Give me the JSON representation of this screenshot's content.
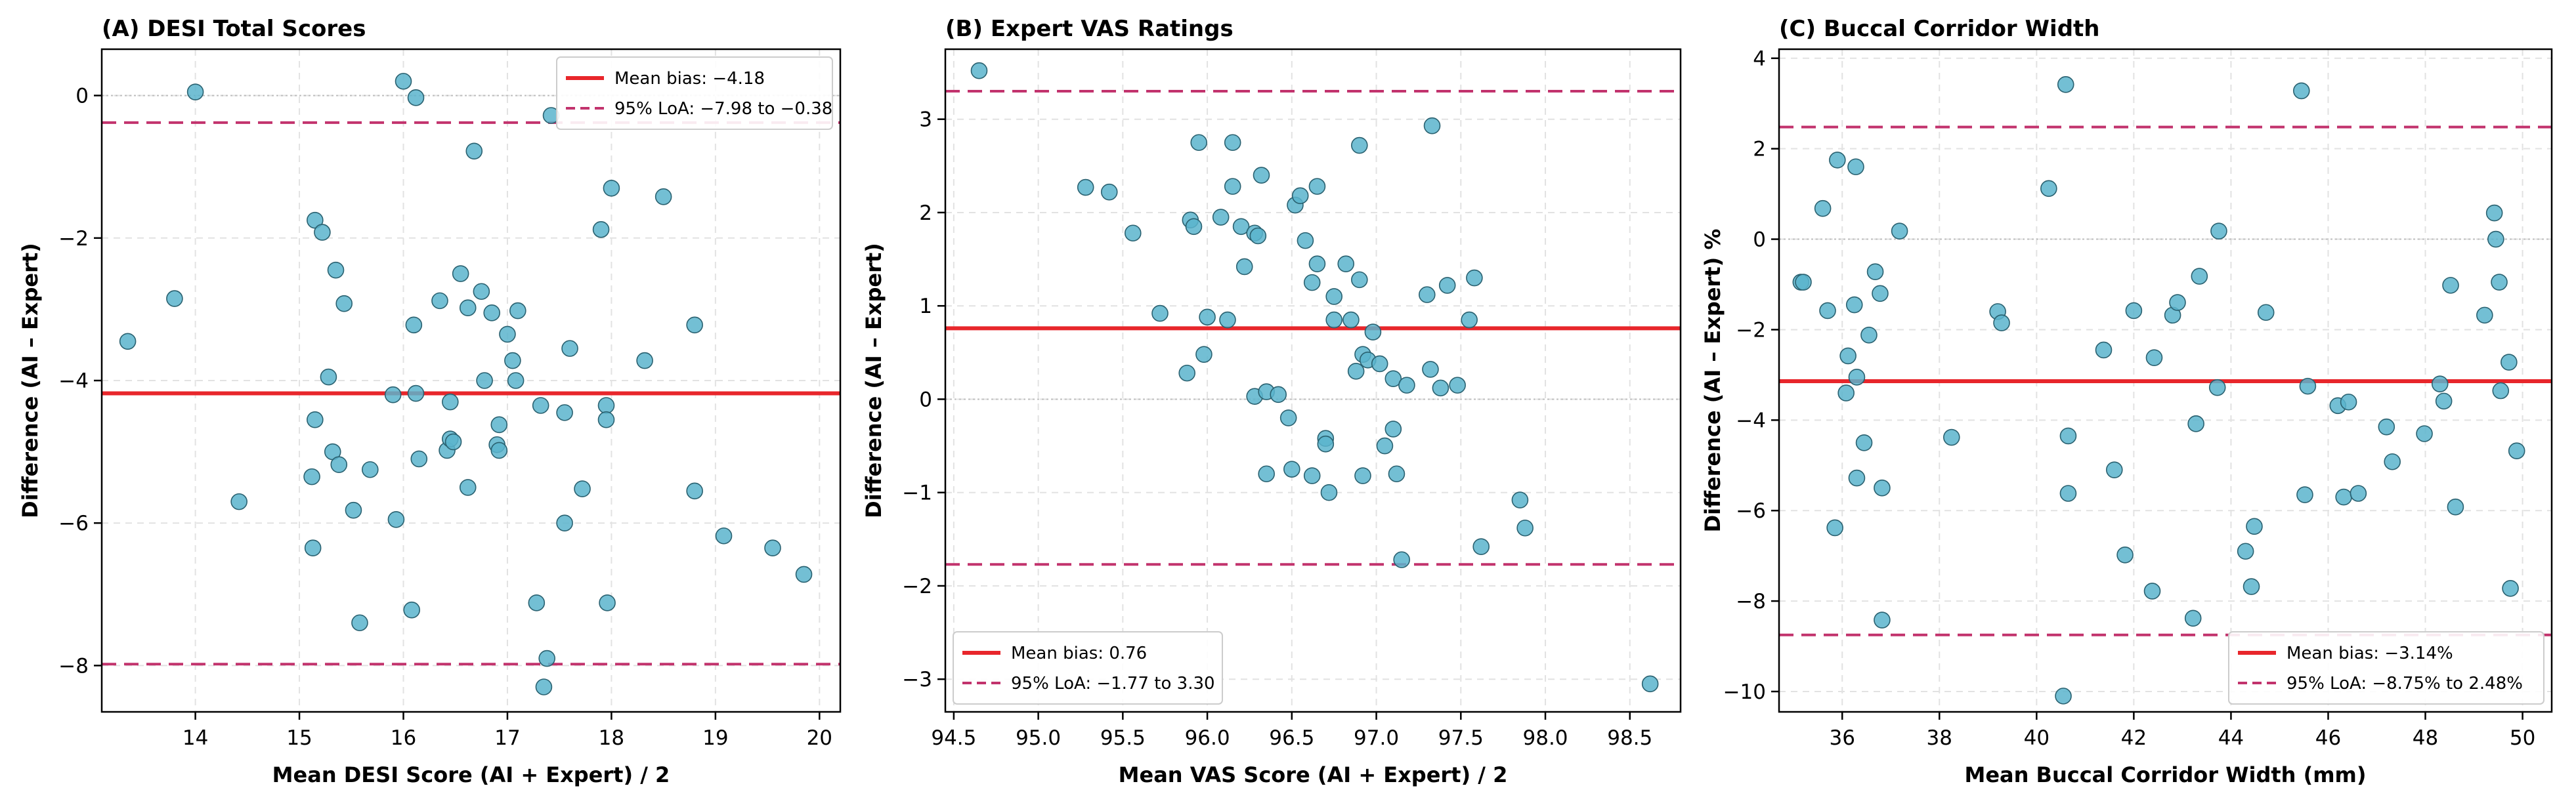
{
  "chart_data": [
    {
      "type": "scatter",
      "title": "(A) DESI Total Scores",
      "xlabel": "Mean DESI Score (AI + Expert) / 2",
      "ylabel": "Difference (AI – Expert)",
      "xlim": [
        13.1,
        20.2
      ],
      "ylim": [
        -8.65,
        0.65
      ],
      "xticks": [
        14,
        15,
        16,
        17,
        18,
        19,
        20
      ],
      "yticks": [
        0,
        -2,
        -4,
        -6,
        -8
      ],
      "xtick_labels": [
        "14",
        "15",
        "16",
        "17",
        "18",
        "19",
        "20"
      ],
      "ytick_labels": [
        "0",
        "−2",
        "−4",
        "−6",
        "−8"
      ],
      "mean_bias": -4.18,
      "loa": [
        -7.98,
        -0.38
      ],
      "legend_position": "top-right",
      "legend": {
        "mean": "Mean bias: −4.18",
        "loa": "95% LoA: −7.98 to −0.38"
      },
      "points": [
        [
          13.35,
          -3.45
        ],
        [
          13.8,
          -2.85
        ],
        [
          14.0,
          0.05
        ],
        [
          14.42,
          -5.7
        ],
        [
          15.15,
          -1.75
        ],
        [
          15.22,
          -1.92
        ],
        [
          15.28,
          -3.95
        ],
        [
          15.35,
          -2.45
        ],
        [
          15.43,
          -2.92
        ],
        [
          15.15,
          -4.55
        ],
        [
          15.12,
          -5.35
        ],
        [
          15.32,
          -5.0
        ],
        [
          15.38,
          -5.18
        ],
        [
          15.13,
          -6.35
        ],
        [
          15.52,
          -5.82
        ],
        [
          15.58,
          -7.4
        ],
        [
          15.68,
          -5.25
        ],
        [
          15.9,
          -4.2
        ],
        [
          15.93,
          -5.95
        ],
        [
          16.0,
          0.2
        ],
        [
          16.08,
          -7.22
        ],
        [
          16.1,
          -3.22
        ],
        [
          16.12,
          -4.18
        ],
        [
          16.15,
          -5.1
        ],
        [
          16.12,
          -0.03
        ],
        [
          16.35,
          -2.88
        ],
        [
          16.42,
          -4.98
        ],
        [
          16.45,
          -4.3
        ],
        [
          16.45,
          -4.82
        ],
        [
          16.48,
          -4.86
        ],
        [
          16.55,
          -2.5
        ],
        [
          16.62,
          -2.98
        ],
        [
          16.68,
          -0.78
        ],
        [
          16.62,
          -5.5
        ],
        [
          16.75,
          -2.75
        ],
        [
          16.78,
          -4.0
        ],
        [
          16.85,
          -3.05
        ],
        [
          16.92,
          -4.62
        ],
        [
          16.9,
          -4.9
        ],
        [
          16.92,
          -4.98
        ],
        [
          17.0,
          -3.35
        ],
        [
          17.05,
          -3.72
        ],
        [
          17.1,
          -3.02
        ],
        [
          17.08,
          -4.0
        ],
        [
          17.28,
          -7.12
        ],
        [
          17.32,
          -4.35
        ],
        [
          17.35,
          -8.3
        ],
        [
          17.38,
          -7.9
        ],
        [
          17.42,
          -0.28
        ],
        [
          17.55,
          -6.0
        ],
        [
          17.55,
          -4.45
        ],
        [
          17.6,
          -3.55
        ],
        [
          17.72,
          -5.52
        ],
        [
          17.9,
          -1.88
        ],
        [
          17.95,
          -4.35
        ],
        [
          17.95,
          -4.55
        ],
        [
          17.96,
          -7.12
        ],
        [
          18.0,
          -1.3
        ],
        [
          18.32,
          -3.72
        ],
        [
          18.5,
          -1.42
        ],
        [
          18.8,
          -3.22
        ],
        [
          18.8,
          -5.55
        ],
        [
          19.08,
          -6.18
        ],
        [
          19.55,
          -6.35
        ],
        [
          19.85,
          -6.72
        ]
      ]
    },
    {
      "type": "scatter",
      "title": "(B) Expert VAS Ratings",
      "xlabel": "Mean VAS Score (AI + Expert) / 2",
      "ylabel": "Difference (AI – Expert)",
      "xlim": [
        94.45,
        98.8
      ],
      "ylim": [
        -3.35,
        3.75
      ],
      "xticks": [
        94.5,
        95.0,
        95.5,
        96.0,
        96.5,
        97.0,
        97.5,
        98.0,
        98.5
      ],
      "yticks": [
        3,
        2,
        1,
        0,
        -1,
        -2,
        -3
      ],
      "xtick_labels": [
        "94.5",
        "95.0",
        "95.5",
        "96.0",
        "96.5",
        "97.0",
        "97.5",
        "98.0",
        "98.5"
      ],
      "ytick_labels": [
        "3",
        "2",
        "1",
        "0",
        "−1",
        "−2",
        "−3"
      ],
      "mean_bias": 0.76,
      "loa": [
        -1.77,
        3.3
      ],
      "legend_position": "bottom-left",
      "legend": {
        "mean": "Mean bias: 0.76",
        "loa": "95% LoA: −1.77 to 3.30"
      },
      "points": [
        [
          94.65,
          3.52
        ],
        [
          95.28,
          2.27
        ],
        [
          95.42,
          2.22
        ],
        [
          95.56,
          1.78
        ],
        [
          95.72,
          0.92
        ],
        [
          95.88,
          0.28
        ],
        [
          95.9,
          1.92
        ],
        [
          95.92,
          1.85
        ],
        [
          95.95,
          2.75
        ],
        [
          95.98,
          0.48
        ],
        [
          96.0,
          0.88
        ],
        [
          96.08,
          1.95
        ],
        [
          96.12,
          0.85
        ],
        [
          96.15,
          2.75
        ],
        [
          96.15,
          2.28
        ],
        [
          96.2,
          1.85
        ],
        [
          96.22,
          1.42
        ],
        [
          96.28,
          1.78
        ],
        [
          96.3,
          1.75
        ],
        [
          96.32,
          2.4
        ],
        [
          96.28,
          0.03
        ],
        [
          96.35,
          -0.8
        ],
        [
          96.35,
          0.08
        ],
        [
          96.42,
          0.05
        ],
        [
          96.48,
          -0.2
        ],
        [
          96.5,
          -0.75
        ],
        [
          96.52,
          2.08
        ],
        [
          96.55,
          2.18
        ],
        [
          96.58,
          1.7
        ],
        [
          96.62,
          1.25
        ],
        [
          96.65,
          1.45
        ],
        [
          96.62,
          -0.82
        ],
        [
          96.65,
          2.28
        ],
        [
          96.7,
          -0.42
        ],
        [
          96.7,
          -0.48
        ],
        [
          96.72,
          -1.0
        ],
        [
          96.75,
          1.1
        ],
        [
          96.75,
          0.85
        ],
        [
          96.82,
          1.45
        ],
        [
          96.85,
          0.85
        ],
        [
          96.88,
          0.3
        ],
        [
          96.9,
          2.72
        ],
        [
          96.9,
          1.28
        ],
        [
          96.92,
          0.48
        ],
        [
          96.92,
          -0.82
        ],
        [
          96.95,
          0.42
        ],
        [
          96.98,
          0.72
        ],
        [
          97.02,
          0.38
        ],
        [
          97.05,
          -0.5
        ],
        [
          97.1,
          -0.32
        ],
        [
          97.1,
          0.22
        ],
        [
          97.12,
          -0.8
        ],
        [
          97.15,
          -1.72
        ],
        [
          97.18,
          0.15
        ],
        [
          97.3,
          1.12
        ],
        [
          97.32,
          0.32
        ],
        [
          97.33,
          2.93
        ],
        [
          97.38,
          0.12
        ],
        [
          97.42,
          1.22
        ],
        [
          97.48,
          0.15
        ],
        [
          97.55,
          0.85
        ],
        [
          97.58,
          1.3
        ],
        [
          97.62,
          -1.58
        ],
        [
          97.85,
          -1.08
        ],
        [
          97.88,
          -1.38
        ],
        [
          98.62,
          -3.05
        ]
      ]
    },
    {
      "type": "scatter",
      "title": "(C) Buccal Corridor Width",
      "xlabel": "Mean Buccal Corridor Width (mm)",
      "ylabel": "Difference (AI – Expert) %",
      "xlim": [
        34.7,
        50.6
      ],
      "ylim": [
        -10.45,
        4.2
      ],
      "xticks": [
        36,
        38,
        40,
        42,
        44,
        46,
        48,
        50
      ],
      "yticks": [
        4,
        2,
        0,
        -2,
        -4,
        -6,
        -8,
        -10
      ],
      "xtick_labels": [
        "36",
        "38",
        "40",
        "42",
        "44",
        "46",
        "48",
        "50"
      ],
      "ytick_labels": [
        "4",
        "2",
        "0",
        "−2",
        "−4",
        "−6",
        "−8",
        "−10"
      ],
      "mean_bias": -3.14,
      "loa": [
        -8.75,
        2.48
      ],
      "legend_position": "bottom-right",
      "legend": {
        "mean": "Mean bias: −3.14%",
        "loa": "95% LoA: −8.75% to 2.48%"
      },
      "points": [
        [
          35.15,
          -0.95
        ],
        [
          35.2,
          -0.95
        ],
        [
          35.6,
          0.68
        ],
        [
          35.7,
          -1.58
        ],
        [
          35.85,
          -6.38
        ],
        [
          35.9,
          1.75
        ],
        [
          36.08,
          -3.4
        ],
        [
          36.12,
          -2.58
        ],
        [
          36.25,
          -1.45
        ],
        [
          36.28,
          1.6
        ],
        [
          36.3,
          -3.05
        ],
        [
          36.3,
          -5.28
        ],
        [
          36.45,
          -4.5
        ],
        [
          36.55,
          -2.12
        ],
        [
          36.68,
          -0.72
        ],
        [
          36.78,
          -1.2
        ],
        [
          36.82,
          -5.5
        ],
        [
          36.82,
          -8.42
        ],
        [
          37.18,
          0.18
        ],
        [
          38.25,
          -4.38
        ],
        [
          39.2,
          -1.6
        ],
        [
          39.28,
          -1.85
        ],
        [
          40.25,
          1.12
        ],
        [
          40.55,
          -10.1
        ],
        [
          40.6,
          3.42
        ],
        [
          40.65,
          -5.62
        ],
        [
          40.65,
          -4.35
        ],
        [
          41.38,
          -2.45
        ],
        [
          41.6,
          -5.1
        ],
        [
          41.82,
          -6.98
        ],
        [
          42.0,
          -1.58
        ],
        [
          42.38,
          -7.78
        ],
        [
          42.42,
          -2.62
        ],
        [
          42.8,
          -1.68
        ],
        [
          42.9,
          -1.4
        ],
        [
          43.22,
          -8.38
        ],
        [
          43.28,
          -4.08
        ],
        [
          43.35,
          -0.82
        ],
        [
          43.72,
          -3.28
        ],
        [
          43.75,
          0.18
        ],
        [
          44.3,
          -6.9
        ],
        [
          44.42,
          -7.68
        ],
        [
          44.48,
          -6.35
        ],
        [
          44.72,
          -1.62
        ],
        [
          45.45,
          3.28
        ],
        [
          45.52,
          -5.65
        ],
        [
          45.58,
          -3.25
        ],
        [
          46.2,
          -3.68
        ],
        [
          46.32,
          -5.7
        ],
        [
          46.42,
          -3.6
        ],
        [
          46.62,
          -5.62
        ],
        [
          47.2,
          -4.15
        ],
        [
          47.32,
          -4.92
        ],
        [
          47.98,
          -4.3
        ],
        [
          48.3,
          -3.2
        ],
        [
          48.38,
          -3.58
        ],
        [
          48.52,
          -1.02
        ],
        [
          48.62,
          -5.92
        ],
        [
          49.22,
          -1.68
        ],
        [
          49.42,
          0.58
        ],
        [
          49.45,
          0.0
        ],
        [
          49.52,
          -0.95
        ],
        [
          49.55,
          -3.35
        ],
        [
          49.72,
          -2.72
        ],
        [
          49.75,
          -7.72
        ],
        [
          49.88,
          -4.68
        ]
      ]
    }
  ],
  "colors": {
    "point_fill": "#5ab4cc",
    "point_edge": "#2a6170",
    "mean_line": "#e8262b",
    "loa_line": "#c2336d",
    "grid": "#e2e2e2",
    "zero_line": "#bdbdbd"
  }
}
